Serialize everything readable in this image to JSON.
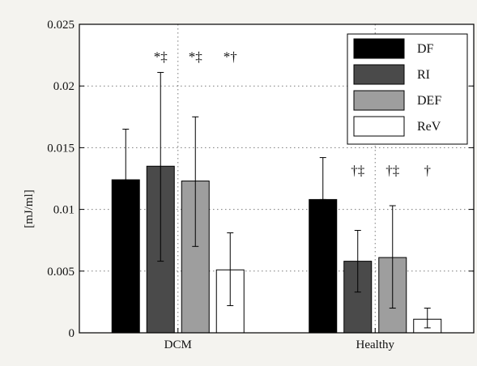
{
  "chart_data": {
    "type": "bar",
    "ylabel": "[mJ/ml]",
    "xlabel": "",
    "title": "",
    "ylim": [
      0,
      0.025
    ],
    "yticks": [
      0,
      0.005,
      0.01,
      0.015,
      0.02,
      0.025
    ],
    "ytick_labels": [
      "0",
      "0.005",
      "0.01",
      "0.015",
      "0.02",
      "0.025"
    ],
    "grid": "dotted",
    "legend_position": "top-right",
    "groups": [
      "DCM",
      "Healthy"
    ],
    "series": [
      {
        "name": "DF",
        "color": "#000000",
        "values": [
          0.0124,
          0.0108
        ],
        "err_low": [
          0.0124,
          0.0108
        ],
        "err_high": [
          0.0165,
          0.0142
        ]
      },
      {
        "name": "RI",
        "color": "#4a4a4a",
        "values": [
          0.0135,
          0.0058
        ],
        "err_low": [
          0.0058,
          0.0033
        ],
        "err_high": [
          0.0211,
          0.0083
        ]
      },
      {
        "name": "DEF",
        "color": "#9e9e9e",
        "values": [
          0.0123,
          0.0061
        ],
        "err_low": [
          0.007,
          0.002
        ],
        "err_high": [
          0.0175,
          0.0103
        ]
      },
      {
        "name": "ReV",
        "color": "#ffffff",
        "values": [
          0.0051,
          0.0011
        ],
        "err_low": [
          0.0022,
          0.0004
        ],
        "err_high": [
          0.0081,
          0.002
        ]
      }
    ],
    "annotations": [
      {
        "group": 0,
        "series": 1,
        "text": "*‡"
      },
      {
        "group": 0,
        "series": 2,
        "text": "*‡"
      },
      {
        "group": 0,
        "series": 3,
        "text": "*†"
      },
      {
        "group": 1,
        "series": 1,
        "text": "†‡"
      },
      {
        "group": 1,
        "series": 2,
        "text": "†‡"
      },
      {
        "group": 1,
        "series": 3,
        "text": "†"
      }
    ],
    "annotation_y": [
      0.022,
      0.0128
    ]
  }
}
